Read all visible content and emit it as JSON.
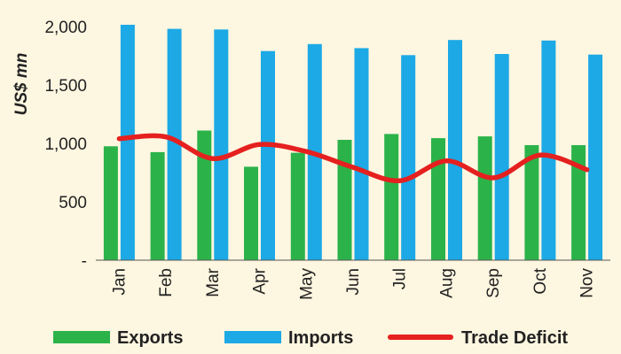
{
  "chart_data": {
    "type": "bar",
    "title": "",
    "xlabel": "",
    "ylabel": "US$ mn",
    "ylim": [
      0,
      2000
    ],
    "yticks": [
      0,
      500,
      1000,
      1500,
      2000
    ],
    "ytick_labels": [
      "-",
      "500",
      "1,000",
      "1,500",
      "2,000"
    ],
    "grid": false,
    "legend_position": "bottom",
    "categories": [
      "Jan",
      "Feb",
      "Mar",
      "Apr",
      "May",
      "Jun",
      "Jul",
      "Aug",
      "Sep",
      "Oct",
      "Nov"
    ],
    "series": [
      {
        "name": "Exports",
        "type": "bar",
        "color": "#2bb34a",
        "values": [
          975,
          925,
          1110,
          800,
          920,
          1030,
          1080,
          1045,
          1060,
          985,
          985
        ]
      },
      {
        "name": "Imports",
        "type": "bar",
        "color": "#1ca9e6",
        "values": [
          2015,
          1980,
          1975,
          1790,
          1850,
          1815,
          1755,
          1885,
          1765,
          1880,
          1760
        ]
      },
      {
        "name": "Trade Deficit",
        "type": "line",
        "color": "#e5201f",
        "values": [
          1040,
          1055,
          870,
          990,
          930,
          795,
          680,
          850,
          705,
          900,
          775
        ]
      }
    ]
  }
}
